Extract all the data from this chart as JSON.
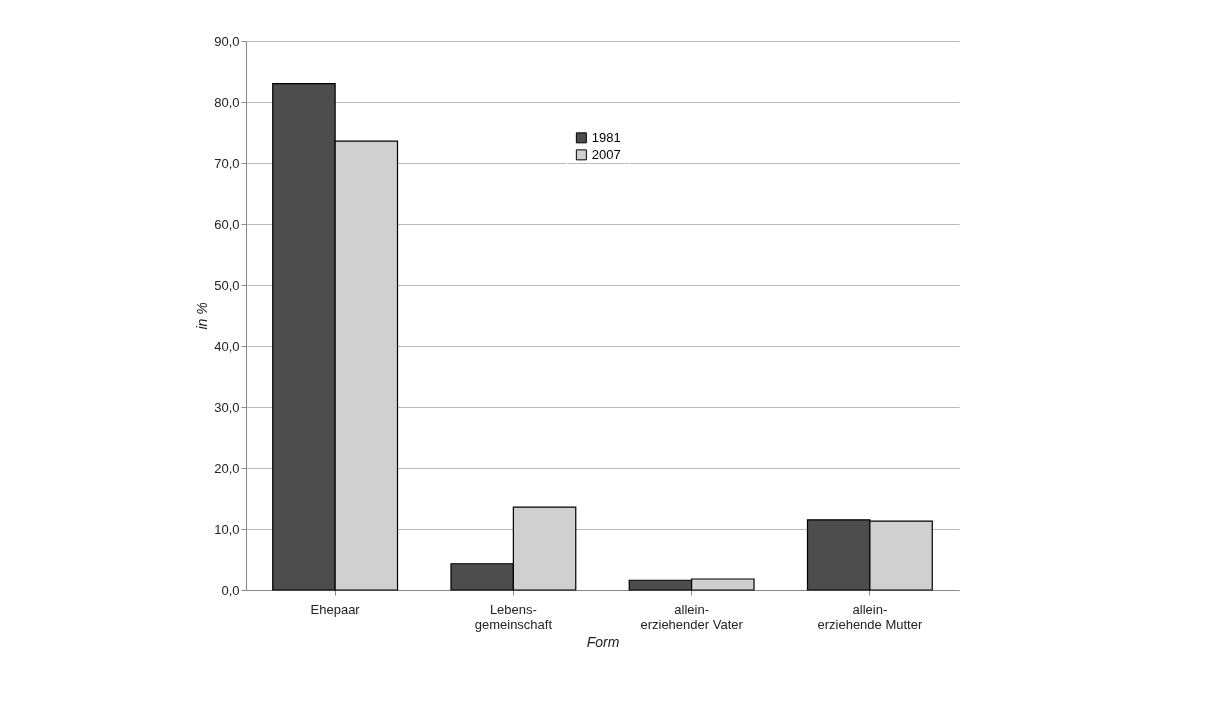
{
  "chart_data": {
    "type": "bar",
    "xlabel": "Form",
    "ylabel": "in %",
    "categories": [
      "Ehepaar",
      "Lebens-\ngemeinschaft",
      "allein-\nerziehender Vater",
      "allein-\nerziehende Mutter"
    ],
    "series": [
      {
        "name": "1981",
        "color": "#4d4d4d",
        "values": [
          83.0,
          4.3,
          1.6,
          11.5
        ]
      },
      {
        "name": "2007",
        "color": "#d0d0d0",
        "values": [
          73.6,
          13.6,
          1.8,
          11.3
        ]
      }
    ],
    "ylim": [
      0,
      90
    ],
    "yticks": [
      {
        "value": 0,
        "label": "0,0"
      },
      {
        "value": 10,
        "label": "10,0"
      },
      {
        "value": 20,
        "label": "20,0"
      },
      {
        "value": 30,
        "label": "30,0"
      },
      {
        "value": 40,
        "label": "40,0"
      },
      {
        "value": 50,
        "label": "50,0"
      },
      {
        "value": 60,
        "label": "60,0"
      },
      {
        "value": 70,
        "label": "70,0"
      },
      {
        "value": 80,
        "label": "80,0"
      },
      {
        "value": 90,
        "label": "90,0"
      }
    ],
    "grid": "y",
    "legend": "top"
  }
}
